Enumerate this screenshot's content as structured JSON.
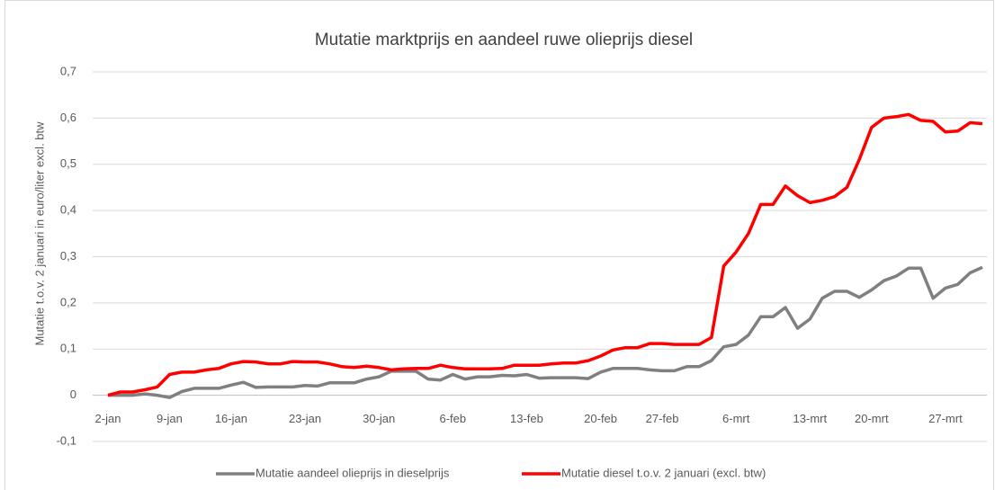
{
  "chart_data": {
    "type": "line",
    "title": "Mutatie marktprijs en aandeel ruwe olieprijs diesel",
    "y_label": "Mutatie t.o.v. 2 januari in euro/liter excl. btw",
    "categories": [
      "2-jan",
      null,
      null,
      null,
      null,
      "9-jan",
      null,
      null,
      null,
      null,
      "16-jan",
      null,
      null,
      null,
      null,
      null,
      "23-jan",
      null,
      null,
      null,
      null,
      null,
      "30-jan",
      null,
      null,
      null,
      null,
      null,
      "6-feb",
      null,
      null,
      null,
      null,
      null,
      "13-feb",
      null,
      null,
      null,
      null,
      null,
      "20-feb",
      null,
      null,
      null,
      null,
      "27-feb",
      null,
      null,
      null,
      null,
      null,
      "6-mrt",
      null,
      null,
      null,
      null,
      null,
      "13-mrt",
      null,
      null,
      null,
      null,
      "20-mrt",
      null,
      null,
      null,
      null,
      null,
      "27-mrt",
      null,
      null,
      null
    ],
    "series": [
      {
        "name": "Mutatie aandeel olieprijs in dieselprijs",
        "color": "#808080",
        "values": [
          0,
          0,
          0,
          0.003,
          0,
          -0.005,
          0.008,
          0.015,
          0.015,
          0.015,
          0.022,
          0.028,
          0.017,
          0.018,
          0.018,
          0.018,
          0.021,
          0.02,
          0.027,
          0.027,
          0.027,
          0.035,
          0.04,
          0.052,
          0.052,
          0.052,
          0.035,
          0.033,
          0.045,
          0.035,
          0.04,
          0.04,
          0.043,
          0.042,
          0.045,
          0.037,
          0.038,
          0.038,
          0.038,
          0.036,
          0.05,
          0.058,
          0.058,
          0.058,
          0.055,
          0.053,
          0.053,
          0.062,
          0.062,
          0.075,
          0.105,
          0.11,
          0.13,
          0.17,
          0.17,
          0.19,
          0.145,
          0.165,
          0.21,
          0.225,
          0.225,
          0.212,
          0.228,
          0.248,
          0.258,
          0.275,
          0.275,
          0.21,
          0.232,
          0.24,
          0.265,
          0.277
        ]
      },
      {
        "name": "Mutatie diesel t.o.v. 2 januari (excl. btw)",
        "color": "#ff0000",
        "values": [
          0,
          0.007,
          0.007,
          0.012,
          0.018,
          0.045,
          0.05,
          0.05,
          0.055,
          0.058,
          0.068,
          0.073,
          0.072,
          0.068,
          0.068,
          0.073,
          0.072,
          0.072,
          0.068,
          0.062,
          0.06,
          0.063,
          0.06,
          0.055,
          0.057,
          0.058,
          0.058,
          0.065,
          0.06,
          0.057,
          0.057,
          0.057,
          0.058,
          0.065,
          0.065,
          0.065,
          0.068,
          0.07,
          0.07,
          0.075,
          0.085,
          0.098,
          0.103,
          0.103,
          0.112,
          0.112,
          0.11,
          0.11,
          0.11,
          0.125,
          0.28,
          0.31,
          0.35,
          0.413,
          0.413,
          0.453,
          0.432,
          0.417,
          0.422,
          0.43,
          0.45,
          0.51,
          0.58,
          0.6,
          0.603,
          0.608,
          0.595,
          0.593,
          0.57,
          0.572,
          0.59,
          0.588
        ]
      }
    ],
    "ylim": [
      -0.1,
      0.7
    ],
    "yticks": [
      {
        "value": -0.1,
        "label": "-0,1"
      },
      0,
      {
        "value": 0.1,
        "label": "0,1"
      },
      {
        "value": 0.2,
        "label": "0,2"
      },
      {
        "value": 0.3,
        "label": "0,3"
      },
      {
        "value": 0.4,
        "label": "0,4"
      },
      {
        "value": 0.5,
        "label": "0,5"
      },
      {
        "value": 0.6,
        "label": "0,6"
      },
      {
        "value": 0.7,
        "label": "0,7"
      }
    ],
    "grid": true,
    "legend": "bottom"
  }
}
